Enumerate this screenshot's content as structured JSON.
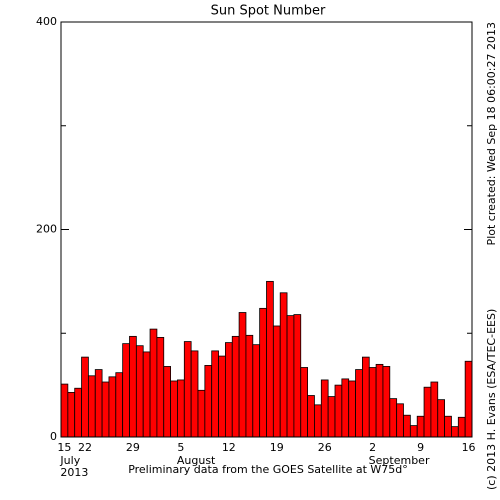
{
  "chart_data": {
    "type": "bar",
    "title": "Sun Spot Number",
    "categories": [
      "15",
      null,
      null,
      "22",
      null,
      null,
      null,
      null,
      null,
      null,
      "29",
      null,
      null,
      null,
      null,
      null,
      null,
      "5",
      null,
      null,
      null,
      null,
      null,
      null,
      "12",
      null,
      null,
      null,
      null,
      null,
      null,
      "19",
      null,
      null,
      null,
      null,
      null,
      null,
      "26",
      null,
      null,
      null,
      null,
      null,
      null,
      "2",
      null,
      null,
      null,
      null,
      null,
      null,
      "9",
      null,
      null,
      null,
      null,
      null,
      null,
      "16"
    ],
    "values": [
      51,
      43,
      47,
      77,
      59,
      65,
      53,
      58,
      62,
      90,
      97,
      88,
      82,
      104,
      96,
      68,
      54,
      55,
      92,
      83,
      45,
      69,
      83,
      78,
      91,
      97,
      120,
      98,
      89,
      124,
      150,
      107,
      139,
      117,
      118,
      67,
      40,
      31,
      55,
      39,
      50,
      56,
      54,
      65,
      77,
      67,
      70,
      68,
      37,
      32,
      21,
      11,
      20,
      48,
      53,
      36,
      20,
      10,
      19,
      73
    ],
    "color": "#ff0000",
    "month_labels": [
      {
        "index": 0,
        "label": "July"
      },
      {
        "index": 17,
        "label": "August"
      },
      {
        "index": 45,
        "label": "September"
      }
    ],
    "year_label": "2013",
    "ylim": [
      0,
      400
    ],
    "yticks": [
      0,
      200,
      400
    ],
    "yminor": [
      100,
      300
    ],
    "footer": "Preliminary data from the GOES Satellite at W75d°",
    "side_note_top": "Plot created: Wed Sep 18 06:00:27 2013",
    "side_note_bottom": "(c) 2013 H. Evans (ESA/TEC-EES)"
  }
}
